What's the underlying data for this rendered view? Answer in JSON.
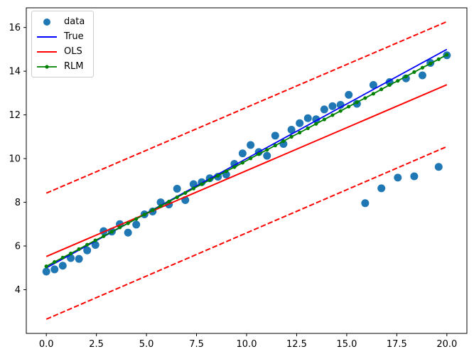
{
  "chart_data": {
    "type": "scatter",
    "title": "",
    "xlabel": "",
    "ylabel": "",
    "grid": false,
    "xlim": [
      -1,
      21
    ],
    "ylim": [
      2.0,
      16.9
    ],
    "x_tick_values": [
      0,
      2.5,
      5,
      7.5,
      10,
      12.5,
      15,
      17.5,
      20
    ],
    "x_tick_labels": [
      "0.0",
      "2.5",
      "5.0",
      "7.5",
      "10.0",
      "12.5",
      "15.0",
      "17.5",
      "20.0"
    ],
    "y_tick_values": [
      4,
      6,
      8,
      10,
      12,
      14,
      16
    ],
    "y_tick_labels": [
      "4",
      "6",
      "8",
      "10",
      "12",
      "14",
      "16"
    ],
    "legend": {
      "position": "upper-left",
      "entries": [
        {
          "label": "data",
          "sample": "marker",
          "color": "#1f77b4"
        },
        {
          "label": "True",
          "sample": "line",
          "color": "#0000ff"
        },
        {
          "label": "OLS",
          "sample": "line",
          "color": "#ff0000"
        },
        {
          "label": "RLM",
          "sample": "line-marker",
          "color": "#008000"
        }
      ]
    },
    "series": [
      {
        "name": "data",
        "type": "scatter",
        "color": "#1f77b4",
        "marker_size": 5.5,
        "x": [
          0,
          0.41,
          0.82,
          1.22,
          1.63,
          2.04,
          2.45,
          2.86,
          3.27,
          3.67,
          4.08,
          4.49,
          4.9,
          5.31,
          5.71,
          6.12,
          6.53,
          6.94,
          7.35,
          7.76,
          8.16,
          8.57,
          8.98,
          9.39,
          9.8,
          10.2,
          10.61,
          11.02,
          11.43,
          11.84,
          12.24,
          12.65,
          13.06,
          13.47,
          13.88,
          14.29,
          14.69,
          15.1,
          15.51,
          15.92,
          16.33,
          16.73,
          17.14,
          17.55,
          17.96,
          18.37,
          18.78,
          19.18,
          19.59,
          20
        ],
        "y": [
          4.83,
          4.93,
          5.1,
          5.45,
          5.41,
          5.8,
          6.05,
          6.68,
          6.66,
          7.0,
          6.61,
          6.98,
          7.45,
          7.58,
          8.0,
          7.9,
          8.62,
          8.1,
          8.83,
          8.92,
          9.1,
          9.17,
          9.27,
          9.76,
          10.24,
          10.62,
          10.3,
          10.13,
          11.05,
          10.67,
          11.32,
          11.62,
          11.85,
          11.8,
          12.25,
          12.4,
          12.46,
          12.92,
          12.51,
          7.96,
          13.37,
          8.64,
          13.5,
          9.13,
          13.67,
          9.19,
          13.81,
          14.38,
          9.62,
          14.73
        ],
        "outlier_indices": [
          39,
          41,
          43,
          45,
          48
        ]
      },
      {
        "name": "True",
        "type": "line",
        "color": "#0000ff",
        "width": 1.8,
        "x": [
          0,
          20
        ],
        "y": [
          5.0,
          15.0
        ]
      },
      {
        "name": "OLS",
        "type": "line",
        "color": "#ff0000",
        "width": 2,
        "x": [
          0,
          20
        ],
        "y": [
          5.52,
          13.38
        ]
      },
      {
        "name": "OLS-upper-band",
        "type": "line",
        "dash": true,
        "color": "#ff0000",
        "width": 2,
        "x": [
          0,
          20
        ],
        "y": [
          8.42,
          16.27
        ]
      },
      {
        "name": "OLS-lower-band",
        "type": "line",
        "dash": true,
        "color": "#ff0000",
        "width": 2,
        "x": [
          0,
          20
        ],
        "y": [
          2.65,
          10.55
        ]
      },
      {
        "name": "RLM",
        "type": "line-markers",
        "color": "#008000",
        "width": 1.8,
        "marker_size": 2.6,
        "x": [
          0,
          0.41,
          0.82,
          1.22,
          1.63,
          2.04,
          2.45,
          2.86,
          3.27,
          3.67,
          4.08,
          4.49,
          4.9,
          5.31,
          5.71,
          6.12,
          6.53,
          6.94,
          7.35,
          7.76,
          8.16,
          8.57,
          8.98,
          9.39,
          9.8,
          10.2,
          10.61,
          11.02,
          11.43,
          11.84,
          12.24,
          12.65,
          13.06,
          13.47,
          13.88,
          14.29,
          14.69,
          15.1,
          15.51,
          15.92,
          16.33,
          16.73,
          17.14,
          17.55,
          17.96,
          18.37,
          18.78,
          19.18,
          19.59,
          20
        ],
        "y": [
          5.07,
          5.27,
          5.47,
          5.66,
          5.86,
          6.06,
          6.26,
          6.45,
          6.65,
          6.85,
          7.04,
          7.24,
          7.44,
          7.64,
          7.83,
          8.03,
          8.23,
          8.43,
          8.63,
          8.83,
          9.02,
          9.22,
          9.42,
          9.61,
          9.81,
          10.01,
          10.21,
          10.4,
          10.6,
          10.8,
          11.0,
          11.19,
          11.39,
          11.59,
          11.79,
          11.99,
          12.18,
          12.38,
          12.58,
          12.77,
          12.97,
          13.17,
          13.37,
          13.56,
          13.76,
          13.96,
          14.16,
          14.35,
          14.55,
          14.75
        ]
      }
    ]
  }
}
